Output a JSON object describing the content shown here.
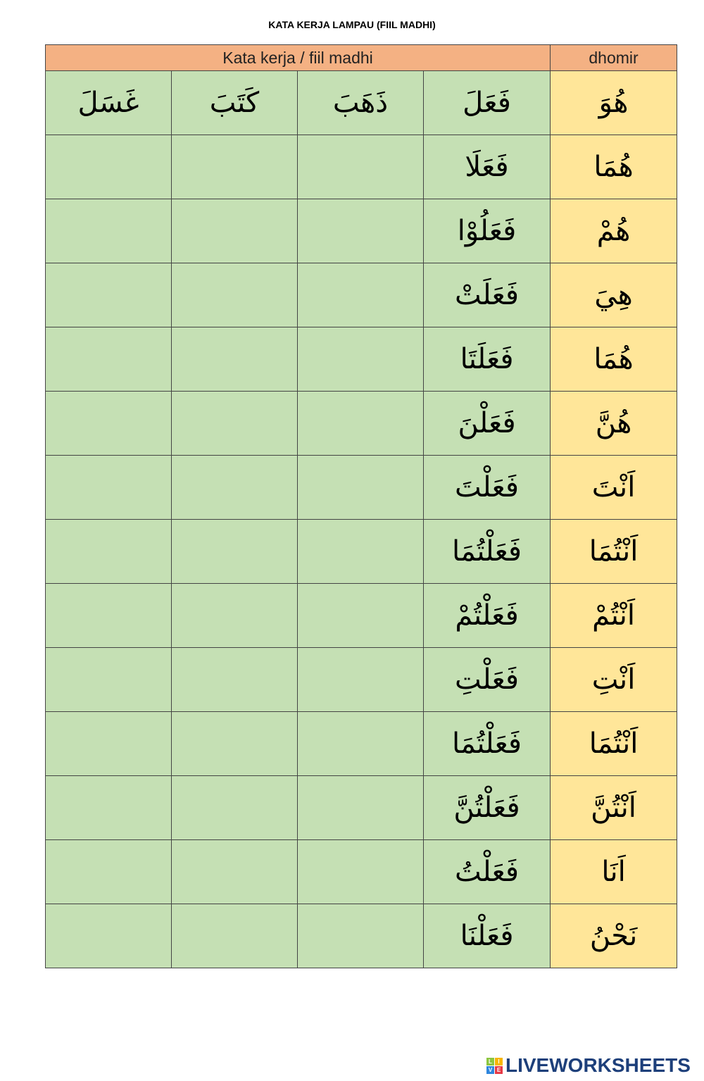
{
  "title": "KATA KERJA LAMPAU (FIIL MADHI)",
  "header": {
    "verbs_label": "Kata kerja / fiil madhi",
    "dhomir_label": "dhomir"
  },
  "colors": {
    "header": "#f4b183",
    "verbs": "#c5e0b4",
    "dhomir": "#ffe699",
    "logo": "#1d3f7a"
  },
  "rows": [
    {
      "dhomir": "هُوَ",
      "verbs": [
        "فَعَلَ",
        "ذَهَبَ",
        "كَتَبَ",
        "غَسَلَ"
      ]
    },
    {
      "dhomir": "هُمَا",
      "verbs": [
        "فَعَلَا",
        "",
        "",
        ""
      ]
    },
    {
      "dhomir": "هُمْ",
      "verbs": [
        "فَعَلُوْا",
        "",
        "",
        ""
      ]
    },
    {
      "dhomir": "هِيَ",
      "verbs": [
        "فَعَلَتْ",
        "",
        "",
        ""
      ]
    },
    {
      "dhomir": "هُمَا",
      "verbs": [
        "فَعَلَتَا",
        "",
        "",
        ""
      ]
    },
    {
      "dhomir": "هُنَّ",
      "verbs": [
        "فَعَلْنَ",
        "",
        "",
        ""
      ]
    },
    {
      "dhomir": "اَنْتَ",
      "verbs": [
        "فَعَلْتَ",
        "",
        "",
        ""
      ]
    },
    {
      "dhomir": "اَنْتُمَا",
      "verbs": [
        "فَعَلْتُمَا",
        "",
        "",
        ""
      ]
    },
    {
      "dhomir": "اَنْتُمْ",
      "verbs": [
        "فَعَلْتُمْ",
        "",
        "",
        ""
      ]
    },
    {
      "dhomir": "اَنْتِ",
      "verbs": [
        "فَعَلْتِ",
        "",
        "",
        ""
      ]
    },
    {
      "dhomir": "اَنْتُمَا",
      "verbs": [
        "فَعَلْتُمَا",
        "",
        "",
        ""
      ]
    },
    {
      "dhomir": "اَنْتُنَّ",
      "verbs": [
        "فَعَلْتُنَّ",
        "",
        "",
        ""
      ]
    },
    {
      "dhomir": "اَنَا",
      "verbs": [
        "فَعَلْتُ",
        "",
        "",
        ""
      ]
    },
    {
      "dhomir": "نَحْنُ",
      "verbs": [
        "فَعَلْنَا",
        "",
        "",
        ""
      ]
    }
  ],
  "logo": {
    "text": "LIVEWORKSHEETS",
    "letters": [
      "L",
      "I",
      "V",
      "E"
    ]
  }
}
